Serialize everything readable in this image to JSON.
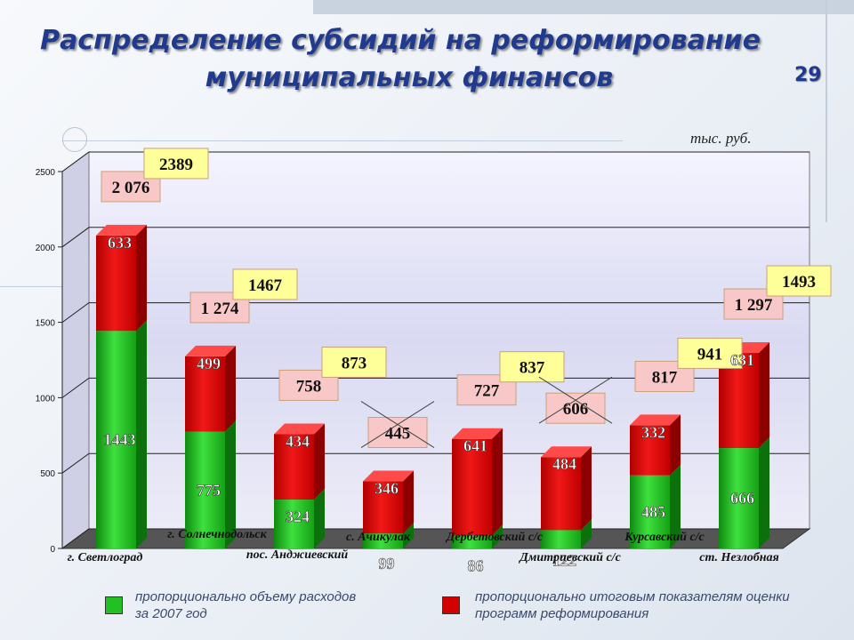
{
  "title": {
    "line1": "Распределение субсидий на реформирование",
    "line2": "муниципальных финансов"
  },
  "slide_number": "29",
  "unit_label": "тыс. руб.",
  "legend": {
    "green": {
      "label_line1": "пропорционально объему расходов",
      "label_line2": "за 2007 год",
      "color": "#22c022"
    },
    "red": {
      "label_line1": "пропорционально итоговым показателям оценки",
      "label_line2": "программ реформирования",
      "color": "#d40000"
    }
  },
  "colors": {
    "green": "#22b022",
    "red": "#d40a0a",
    "total_bg": "#f8c8c8",
    "new_bg": "#ffff99"
  },
  "chart_data": {
    "type": "bar",
    "stacked": true,
    "ylim": [
      0,
      2500
    ],
    "yticks": [
      0,
      500,
      1000,
      1500,
      2000,
      2500
    ],
    "grid": true,
    "categories": [
      "г. Светлоград",
      "г. Солнечнодольск",
      "пос. Анджиевский",
      "с. Ачикулак",
      "Дербетовский с/с",
      "Дмитриевский с/с",
      "Курсавский с/с",
      "ст. Незлобная"
    ],
    "series": [
      {
        "name": "пропорционально объему расходов за 2007 год",
        "values": [
          1443,
          775,
          324,
          99,
          86,
          122,
          485,
          666
        ]
      },
      {
        "name": "пропорционально итоговым показателям оценки программ реформирования",
        "values": [
          633,
          499,
          434,
          346,
          641,
          484,
          332,
          631
        ]
      }
    ],
    "totals": [
      "2 076",
      "1 274",
      "758",
      "445",
      "727",
      "606",
      "817",
      "1 297"
    ],
    "totals_crossed": [
      false,
      false,
      false,
      true,
      false,
      true,
      false,
      false
    ],
    "new_values": [
      "2389",
      "1467",
      "873",
      "",
      "837",
      "",
      "941",
      "1493"
    ]
  }
}
